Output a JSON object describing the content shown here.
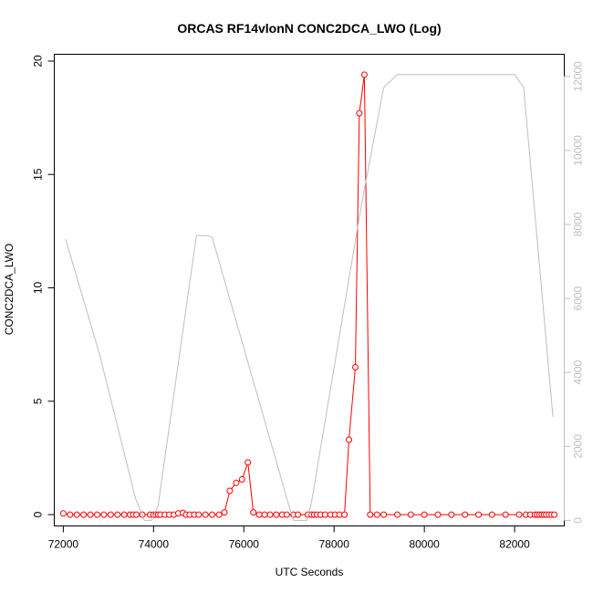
{
  "chart_data": {
    "type": "line",
    "title": "ORCAS RF14vlonN CONC2DCA_LWO (Log)",
    "xlabel": "UTC Seconds",
    "ylabel": "CONC2DCA_LWO",
    "xlim": [
      71800,
      83100
    ],
    "ylim": [
      -0.5,
      20.3
    ],
    "y2lim": [
      -150,
      12600
    ],
    "x_ticks": [
      72000,
      74000,
      76000,
      78000,
      80000,
      82000
    ],
    "y_ticks": [
      0,
      5,
      10,
      15,
      20
    ],
    "y2_ticks": [
      0,
      2000,
      4000,
      6000,
      8000,
      10000,
      12000
    ],
    "colors": {
      "primary": "#ff0000",
      "secondary": "#bebebe"
    },
    "series": [
      {
        "axis": "left",
        "style": "line-points",
        "x": [
          72000,
          72150,
          72300,
          72450,
          72600,
          72750,
          72900,
          73050,
          73200,
          73350,
          73480,
          73550,
          73620,
          73750,
          73920,
          74000,
          74050,
          74100,
          74150,
          74250,
          74350,
          74450,
          74550,
          74650,
          74720,
          74800,
          74900,
          75000,
          75150,
          75300,
          75450,
          75570,
          75690,
          75830,
          75960,
          76090,
          76210,
          76340,
          76460,
          76580,
          76720,
          76850,
          76950,
          77100,
          77200,
          77420,
          77500,
          77560,
          77620,
          77700,
          77800,
          77920,
          78020,
          78120,
          78230,
          78330,
          78470,
          78560,
          78670,
          78800,
          78950,
          79100,
          79400,
          79700,
          80000,
          80300,
          80600,
          80900,
          81200,
          81500,
          81800,
          82100,
          82250,
          82350,
          82450,
          82500,
          82550,
          82600,
          82650,
          82700,
          82760,
          82820,
          82880
        ],
        "y": [
          0.05,
          0,
          0,
          0,
          0,
          0,
          0,
          0,
          0,
          0,
          0,
          0,
          0,
          0,
          0,
          0,
          0,
          0,
          0,
          0,
          0,
          0,
          0.05,
          0.08,
          0,
          0,
          0,
          0,
          0,
          0,
          0,
          0.1,
          1.05,
          1.4,
          1.55,
          2.3,
          0.1,
          0,
          0,
          0,
          0,
          0,
          0,
          0,
          0,
          0,
          0,
          0,
          0,
          0,
          0,
          0,
          0,
          0,
          0,
          3.3,
          6.5,
          17.7,
          19.4,
          0,
          0,
          0,
          0,
          0,
          0,
          0,
          0,
          0,
          0,
          0,
          0,
          0,
          0,
          0,
          0,
          0,
          0,
          0,
          0,
          0,
          0,
          0,
          0
        ]
      },
      {
        "axis": "right",
        "style": "line",
        "x": [
          72050,
          72800,
          73600,
          73800,
          73950,
          74100,
          74950,
          75200,
          75300,
          77000,
          77100,
          77400,
          77500,
          78600,
          79100,
          79400,
          82000,
          82200,
          82850
        ],
        "y": [
          7600,
          4500,
          600,
          0,
          0,
          400,
          7700,
          7700,
          7650,
          400,
          0,
          0,
          500,
          8500,
          11700,
          12050,
          12050,
          11700,
          2800
        ]
      }
    ]
  }
}
